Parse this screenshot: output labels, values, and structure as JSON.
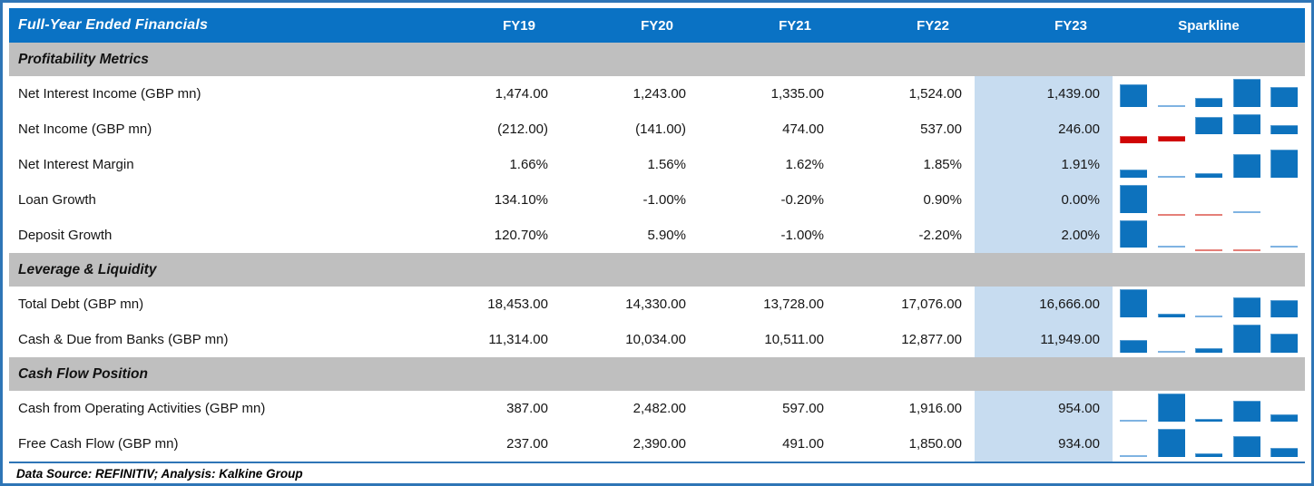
{
  "header": {
    "title": "Full-Year Ended Financials",
    "year_columns": [
      "FY19",
      "FY20",
      "FY21",
      "FY22",
      "FY23"
    ],
    "sparkline_column": "Sparkline"
  },
  "sections": [
    {
      "title": "Profitability Metrics",
      "rows": [
        {
          "label": "Net Interest Income (GBP mn)",
          "cells": [
            "1,474.00",
            "1,243.00",
            "1,335.00",
            "1,524.00",
            "1,439.00"
          ],
          "values": [
            1474,
            1243,
            1335,
            1524,
            1439
          ]
        },
        {
          "label": "Net Income (GBP mn)",
          "cells": [
            "(212.00)",
            "(141.00)",
            "474.00",
            "537.00",
            "246.00"
          ],
          "values": [
            -212,
            -141,
            474,
            537,
            246
          ]
        },
        {
          "label": "Net Interest Margin",
          "cells": [
            "1.66%",
            "1.56%",
            "1.62%",
            "1.85%",
            "1.91%"
          ],
          "values": [
            1.66,
            1.56,
            1.62,
            1.85,
            1.91
          ]
        },
        {
          "label": "Loan Growth",
          "cells": [
            "134.10%",
            "-1.00%",
            "-0.20%",
            "0.90%",
            "0.00%"
          ],
          "values": [
            134.1,
            -1.0,
            -0.2,
            0.9,
            0.0
          ]
        },
        {
          "label": "Deposit Growth",
          "cells": [
            "120.70%",
            "5.90%",
            "-1.00%",
            "-2.20%",
            "2.00%"
          ],
          "values": [
            120.7,
            5.9,
            -1.0,
            -2.2,
            2.0
          ]
        }
      ]
    },
    {
      "title": "Leverage & Liquidity",
      "rows": [
        {
          "label": "Total Debt (GBP mn)",
          "cells": [
            "18,453.00",
            "14,330.00",
            "13,728.00",
            "17,076.00",
            "16,666.00"
          ],
          "values": [
            18453,
            14330,
            13728,
            17076,
            16666
          ]
        },
        {
          "label": "Cash & Due from Banks (GBP mn)",
          "cells": [
            "11,314.00",
            "10,034.00",
            "10,511.00",
            "12,877.00",
            "11,949.00"
          ],
          "values": [
            11314,
            10034,
            10511,
            12877,
            11949
          ]
        }
      ]
    },
    {
      "title": "Cash Flow Position",
      "rows": [
        {
          "label": "Cash from Operating Activities (GBP mn)",
          "cells": [
            "387.00",
            "2,482.00",
            "597.00",
            "1,916.00",
            "954.00"
          ],
          "values": [
            387,
            2482,
            597,
            1916,
            954
          ]
        },
        {
          "label": "Free Cash Flow (GBP mn)",
          "cells": [
            "237.00",
            "2,390.00",
            "491.00",
            "1,850.00",
            "934.00"
          ],
          "values": [
            237,
            2390,
            491,
            1850,
            934
          ]
        }
      ]
    }
  ],
  "footer": {
    "text": "Data Source: REFINITIV; Analysis: Kalkine Group"
  },
  "highlighted_column": "FY23",
  "colors": {
    "header_bg": "#0A72C4",
    "section_bg": "#BFBFBF",
    "fy23_highlight": "#C7DCF0",
    "frame_border": "#2E75B6",
    "bar_positive": "#0D72BD",
    "bar_positive_light": "#7FB3E2",
    "bar_negative": "#D00505",
    "bar_negative_light": "#E57F78"
  },
  "chart_data": {
    "type": "table",
    "title": "Full-Year Ended Financials",
    "columns": [
      "FY19",
      "FY20",
      "FY21",
      "FY22",
      "FY23"
    ],
    "highlight_column": "FY23",
    "sparkline_type": "bar",
    "series": [
      {
        "name": "Net Interest Income (GBP mn)",
        "values": [
          1474,
          1243,
          1335,
          1524,
          1439
        ]
      },
      {
        "name": "Net Income (GBP mn)",
        "values": [
          -212,
          -141,
          474,
          537,
          246
        ]
      },
      {
        "name": "Net Interest Margin (%)",
        "values": [
          1.66,
          1.56,
          1.62,
          1.85,
          1.91
        ]
      },
      {
        "name": "Loan Growth (%)",
        "values": [
          134.1,
          -1.0,
          -0.2,
          0.9,
          0.0
        ]
      },
      {
        "name": "Deposit Growth (%)",
        "values": [
          120.7,
          5.9,
          -1.0,
          -2.2,
          2.0
        ]
      },
      {
        "name": "Total Debt (GBP mn)",
        "values": [
          18453,
          14330,
          13728,
          17076,
          16666
        ]
      },
      {
        "name": "Cash & Due from Banks (GBP mn)",
        "values": [
          11314,
          10034,
          10511,
          12877,
          11949
        ]
      },
      {
        "name": "Cash from Operating Activities (GBP mn)",
        "values": [
          387,
          2482,
          597,
          1916,
          954
        ]
      },
      {
        "name": "Free Cash Flow (GBP mn)",
        "values": [
          237,
          2390,
          491,
          1850,
          934
        ]
      }
    ]
  }
}
